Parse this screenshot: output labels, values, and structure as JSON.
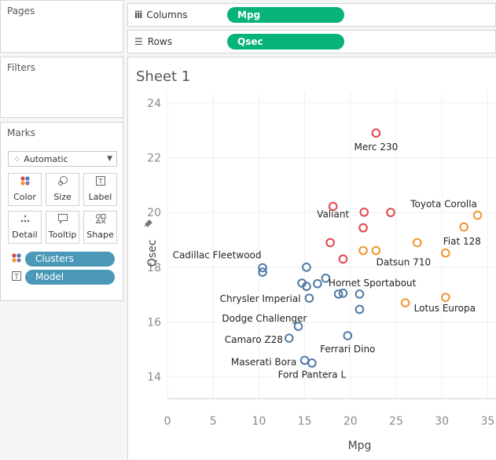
{
  "pages": {
    "title": "Pages"
  },
  "filters": {
    "title": "Filters"
  },
  "marks": {
    "title": "Marks",
    "mark_type": "Automatic",
    "buttons": [
      {
        "label": "Color",
        "icon": "color-dots-icon"
      },
      {
        "label": "Size",
        "icon": "size-icon"
      },
      {
        "label": "Label",
        "icon": "label-icon"
      },
      {
        "label": "Detail",
        "icon": "detail-icon"
      },
      {
        "label": "Tooltip",
        "icon": "tooltip-icon"
      },
      {
        "label": "Shape",
        "icon": "shape-icon"
      }
    ],
    "fields": [
      {
        "label": "Clusters",
        "icon": "color-dots-icon"
      },
      {
        "label": "Model",
        "icon": "label-icon"
      }
    ]
  },
  "shelves": {
    "columns": {
      "label": "Columns",
      "pill": "Mpg"
    },
    "rows": {
      "label": "Rows",
      "pill": "Qsec"
    }
  },
  "sheet": {
    "title": "Sheet 1"
  },
  "colors": {
    "red": "#e0464c",
    "orange": "#f0952f",
    "blue": "#4f79a6",
    "green": "#08b37a"
  },
  "chart_data": {
    "type": "scatter",
    "xlabel": "Mpg",
    "ylabel": "Qsec",
    "xlim": [
      0,
      36
    ],
    "ylim": [
      13.2,
      24.4
    ],
    "xticks": [
      0,
      5,
      10,
      15,
      20,
      25,
      30,
      35
    ],
    "yticks": [
      14,
      16,
      18,
      20,
      22,
      24
    ],
    "series": [
      {
        "color": "#e0464c",
        "points": [
          {
            "x": 22.8,
            "y": 22.9,
            "label": "Merc 230"
          },
          {
            "x": 18.1,
            "y": 20.22,
            "label": "Valiant"
          },
          {
            "x": 21.4,
            "y": 19.44,
            "label": ""
          },
          {
            "x": 21.5,
            "y": 20.01,
            "label": ""
          },
          {
            "x": 24.4,
            "y": 20.0,
            "label": ""
          },
          {
            "x": 17.8,
            "y": 18.9,
            "label": ""
          },
          {
            "x": 19.2,
            "y": 18.3,
            "label": ""
          }
        ]
      },
      {
        "color": "#f0952f",
        "points": [
          {
            "x": 33.9,
            "y": 19.9,
            "label": "Toyota Corolla"
          },
          {
            "x": 32.4,
            "y": 19.47,
            "label": ""
          },
          {
            "x": 27.3,
            "y": 18.9,
            "label": ""
          },
          {
            "x": 30.4,
            "y": 18.52,
            "label": "Fiat 128"
          },
          {
            "x": 21.4,
            "y": 18.61,
            "label": ""
          },
          {
            "x": 22.8,
            "y": 18.61,
            "label": "Datsun 710"
          },
          {
            "x": 26.0,
            "y": 16.7,
            "label": ""
          },
          {
            "x": 30.4,
            "y": 16.9,
            "label": "Lotus Europa"
          }
        ]
      },
      {
        "color": "#4f79a6",
        "points": [
          {
            "x": 10.4,
            "y": 17.98,
            "label": "Cadillac Fleetwood"
          },
          {
            "x": 10.4,
            "y": 17.82,
            "label": ""
          },
          {
            "x": 15.2,
            "y": 18.0,
            "label": ""
          },
          {
            "x": 14.7,
            "y": 17.42,
            "label": "Chrysler Imperial"
          },
          {
            "x": 15.2,
            "y": 17.3,
            "label": ""
          },
          {
            "x": 16.4,
            "y": 17.4,
            "label": ""
          },
          {
            "x": 17.3,
            "y": 17.6,
            "label": ""
          },
          {
            "x": 15.5,
            "y": 16.87,
            "label": "Dodge Challenger"
          },
          {
            "x": 18.7,
            "y": 17.02,
            "label": "Hornet Sportabout"
          },
          {
            "x": 19.2,
            "y": 17.05,
            "label": ""
          },
          {
            "x": 21.0,
            "y": 17.02,
            "label": ""
          },
          {
            "x": 21.0,
            "y": 16.46,
            "label": ""
          },
          {
            "x": 14.3,
            "y": 15.84,
            "label": ""
          },
          {
            "x": 13.3,
            "y": 15.41,
            "label": "Camaro Z28"
          },
          {
            "x": 19.7,
            "y": 15.5,
            "label": "Ferrari Dino"
          },
          {
            "x": 15.0,
            "y": 14.6,
            "label": "Maserati Bora"
          },
          {
            "x": 15.8,
            "y": 14.5,
            "label": "Ford Pantera L"
          }
        ]
      }
    ]
  }
}
